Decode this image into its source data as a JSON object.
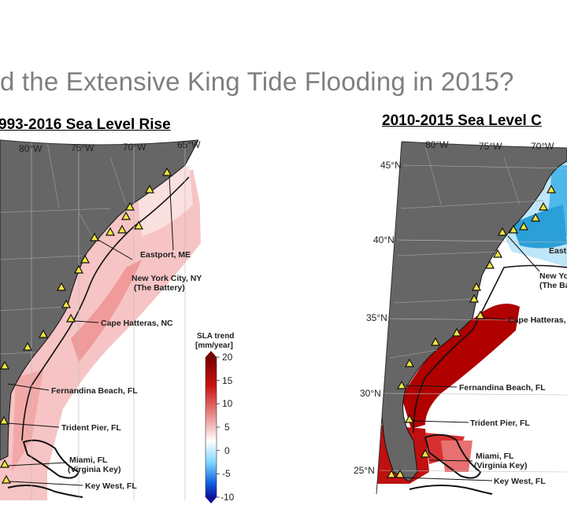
{
  "slide": {
    "title": "d the Extensive King Tide Flooding in 2015?"
  },
  "left_map": {
    "title": "993-2016 Sea Level Rise ",
    "lon_labels": [
      "80°W",
      "75°W",
      "70°W",
      "65°W"
    ],
    "stations": [
      "Eastport, ME",
      "New York City, NY",
      "(The Battery)",
      "Cape Hatteras, NC",
      "Fernandina Beach, FL",
      "Trident Pier, FL",
      "Miami, FL",
      "(Virginia Key)",
      "Key West, FL"
    ]
  },
  "right_map": {
    "title": "2010-2015 Sea Level C",
    "lon_labels": [
      "80°W",
      "75°W",
      "70°W"
    ],
    "lat_labels": [
      "45°N",
      "40°N",
      "35°N",
      "30°N",
      "25°N"
    ],
    "stations": [
      "Eastp",
      "New Yo",
      "(The Ba",
      "Cape Hatteras,",
      "Fernandina Beach, FL",
      "Trident Pier, FL",
      "Miami, FL",
      "(Virginia Key)",
      "Key West, FL"
    ]
  },
  "colorbar": {
    "title_line1": "SLA trend",
    "title_line2": "[mm/year]",
    "ticks": [
      "20",
      "15",
      "10",
      "5",
      "0",
      "-5",
      "-10"
    ],
    "range": [
      -10,
      20
    ]
  },
  "colors": {
    "land": "#666666",
    "warm": "#b00000",
    "cool": "#2a9fd8",
    "station_marker": "#f0e640"
  }
}
